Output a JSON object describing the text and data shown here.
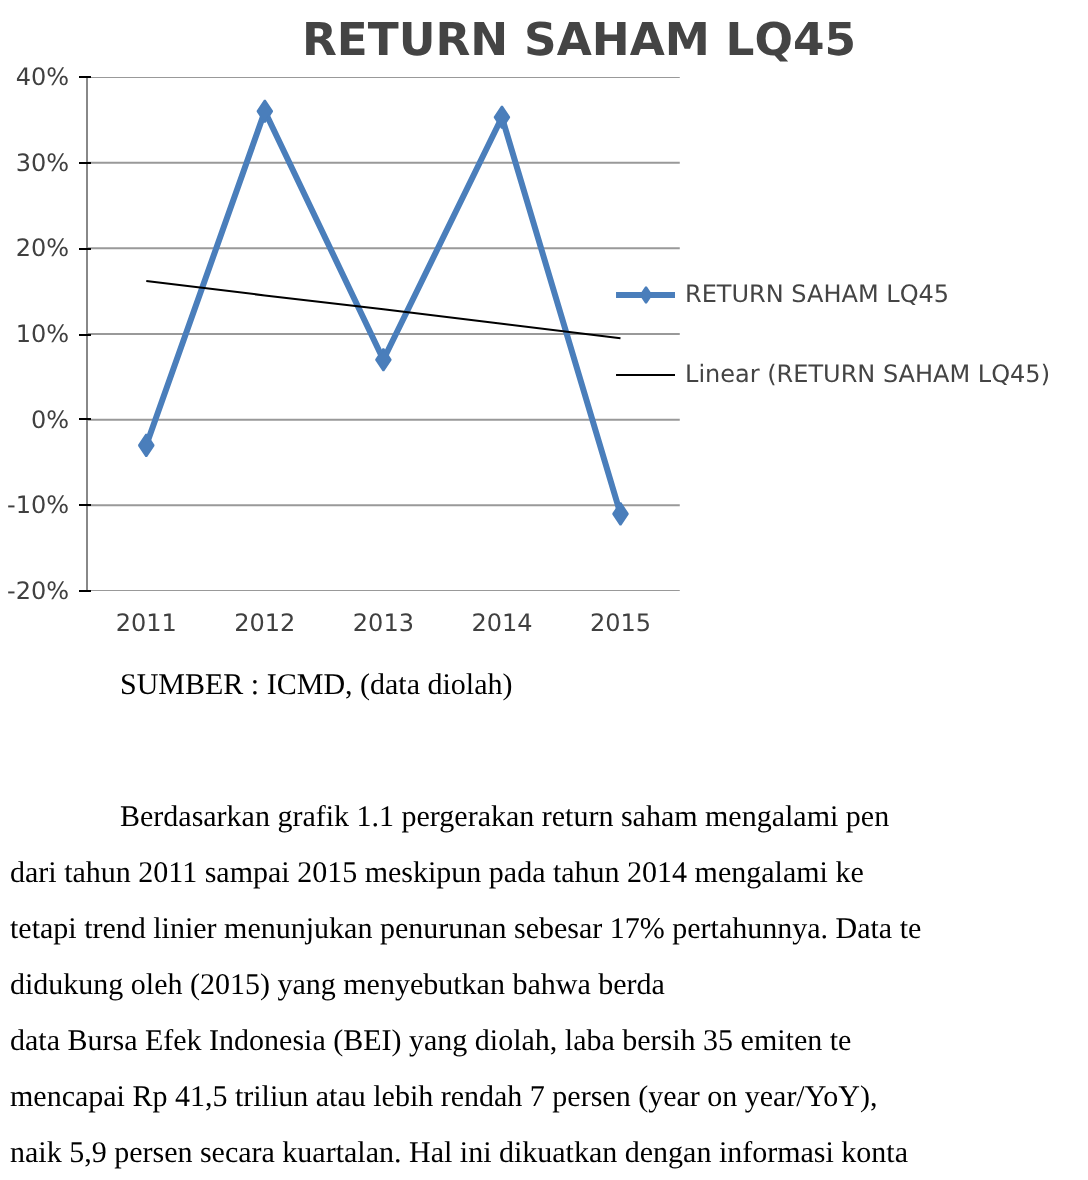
{
  "chart_data": {
    "type": "line",
    "title": "RETURN SAHAM LQ45",
    "categories": [
      "2011",
      "2012",
      "2013",
      "2014",
      "2015"
    ],
    "series": [
      {
        "name": "RETURN SAHAM LQ45",
        "color": "#4a7ebb",
        "values": [
          -3,
          36,
          7,
          35.3,
          -11
        ],
        "marker": "diamond"
      },
      {
        "name": "Linear (RETURN SAHAM LQ45)",
        "color": "#000000",
        "values": [
          16.2,
          14.5,
          12.9,
          11.2,
          9.5
        ],
        "marker": "none"
      }
    ],
    "ylim": [
      -20,
      40
    ],
    "yticks": [
      {
        "value": -20,
        "label": "-20%"
      },
      {
        "value": -10,
        "label": "-10%"
      },
      {
        "value": 0,
        "label": "0%"
      },
      {
        "value": 10,
        "label": "10%"
      },
      {
        "value": 20,
        "label": "20%"
      },
      {
        "value": 30,
        "label": "30%"
      },
      {
        "value": 40,
        "label": "40%"
      }
    ],
    "grid": "y",
    "legend": "right",
    "annotations": [
      "SUMBER : ICMD, (data diolah)",
      "Berdasarkan grafik 1.1 pergerakan return saham mengalami pen",
      "dari tahun 2011 sampai 2015 meskipun pada tahun 2014 mengalami ke",
      "tetapi trend linier menunjukan penurunan sebesar 17% pertahunnya. Data te",
      "didukung oleh (2015) yang menyebutkan bahwa berda",
      "data Bursa Efek Indonesia (BEI) yang diolah, laba bersih 35 emiten te",
      "mencapai Rp 41,5 triliun atau lebih rendah 7 persen (year on year/YoY),",
      "naik 5,9 persen secara kuartalan. Hal ini dikuatkan dengan informasi konta"
    ]
  }
}
